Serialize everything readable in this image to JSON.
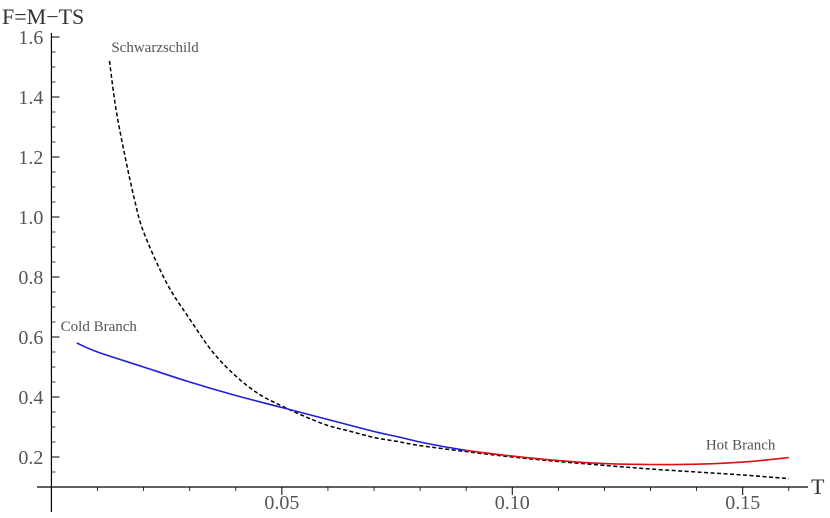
{
  "chart_data": {
    "type": "line",
    "title": "",
    "xlabel": "T",
    "ylabel": "F=M−TS",
    "xlim": [
      -0.003,
      0.162
    ],
    "ylim": [
      0.1,
      1.6
    ],
    "x_origin": 0.0,
    "y_origin": 0.1,
    "xticks": [
      {
        "v": 0.05,
        "label": "0.05"
      },
      {
        "v": 0.1,
        "label": "0.10"
      },
      {
        "v": 0.15,
        "label": "0.15"
      }
    ],
    "yticks": [
      {
        "v": 0.2,
        "label": "0.2"
      },
      {
        "v": 0.4,
        "label": "0.4"
      },
      {
        "v": 0.6,
        "label": "0.6"
      },
      {
        "v": 0.8,
        "label": "0.8"
      },
      {
        "v": 1.0,
        "label": "1.0"
      },
      {
        "v": 1.2,
        "label": "1.2"
      },
      {
        "v": 1.4,
        "label": "1.4"
      },
      {
        "v": 1.6,
        "label": "1.6"
      }
    ],
    "minor_x_step": 0.01,
    "minor_y_step": 0.05,
    "grid": false,
    "series": [
      {
        "name": "Schwarzschild",
        "color": "#000000",
        "dash": true,
        "label_at": [
          0.013,
          1.55
        ],
        "points": [
          [
            0.0126,
            1.52
          ],
          [
            0.014,
            1.36
          ],
          [
            0.016,
            1.2
          ],
          [
            0.018,
            1.06
          ],
          [
            0.02,
            0.95
          ],
          [
            0.025,
            0.78
          ],
          [
            0.03,
            0.66
          ],
          [
            0.035,
            0.55
          ],
          [
            0.04,
            0.47
          ],
          [
            0.045,
            0.41
          ],
          [
            0.05,
            0.37
          ],
          [
            0.055,
            0.335
          ],
          [
            0.06,
            0.305
          ],
          [
            0.065,
            0.285
          ],
          [
            0.07,
            0.265
          ],
          [
            0.075,
            0.252
          ],
          [
            0.08,
            0.238
          ],
          [
            0.09,
            0.218
          ],
          [
            0.1,
            0.2
          ],
          [
            0.11,
            0.185
          ],
          [
            0.12,
            0.172
          ],
          [
            0.13,
            0.16
          ],
          [
            0.14,
            0.15
          ],
          [
            0.15,
            0.14
          ],
          [
            0.16,
            0.128
          ]
        ]
      },
      {
        "name": "Cold Branch",
        "color": "#1f1fdc",
        "dash": false,
        "label_at": [
          0.002,
          0.62
        ],
        "points": [
          [
            0.0055,
            0.58
          ],
          [
            0.01,
            0.55
          ],
          [
            0.02,
            0.5
          ],
          [
            0.03,
            0.45
          ],
          [
            0.04,
            0.405
          ],
          [
            0.05,
            0.365
          ],
          [
            0.06,
            0.325
          ],
          [
            0.07,
            0.285
          ],
          [
            0.075,
            0.268
          ],
          [
            0.08,
            0.25
          ],
          [
            0.085,
            0.235
          ],
          [
            0.09,
            0.222
          ]
        ]
      },
      {
        "name": "Hot Branch",
        "color": "#dd1111",
        "dash": false,
        "label_at": [
          0.142,
          0.225
        ],
        "points": [
          [
            0.09,
            0.222
          ],
          [
            0.1,
            0.203
          ],
          [
            0.11,
            0.188
          ],
          [
            0.12,
            0.178
          ],
          [
            0.13,
            0.175
          ],
          [
            0.14,
            0.176
          ],
          [
            0.15,
            0.183
          ],
          [
            0.16,
            0.198
          ]
        ]
      }
    ]
  }
}
